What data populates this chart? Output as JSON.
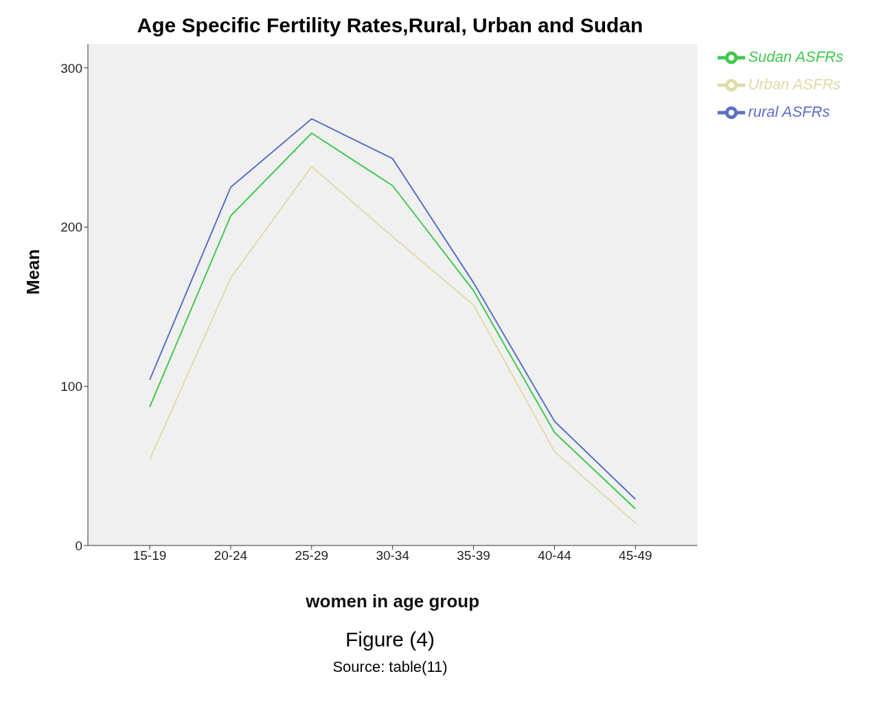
{
  "chart_data": {
    "type": "line",
    "title": "Age Specific Fertility Rates,Rural, Urban and Sudan",
    "xlabel": "women in age group",
    "ylabel": "Mean",
    "categories": [
      "15-19",
      "20-24",
      "25-29",
      "30-34",
      "35-39",
      "40-44",
      "45-49"
    ],
    "series": [
      {
        "name": "rural ASFRs",
        "color": "#5b6fc7",
        "values": [
          104,
          225,
          268,
          243,
          165,
          78,
          29
        ]
      },
      {
        "name": "Sudan ASFRs",
        "color": "#3fc94d",
        "values": [
          87,
          207,
          259,
          226,
          160,
          71,
          23
        ]
      },
      {
        "name": "Urban ASFRs",
        "color": "#e0dba8",
        "values": [
          54,
          168,
          238,
          194,
          151,
          59,
          14
        ]
      }
    ],
    "ylim": [
      0,
      315
    ],
    "yticks": [
      0,
      100,
      200,
      300
    ],
    "grid": false,
    "legend": "top right",
    "marker": "none",
    "line_style": "solid",
    "annotations": [
      "Figure (4)",
      "Source: table(11)"
    ]
  }
}
